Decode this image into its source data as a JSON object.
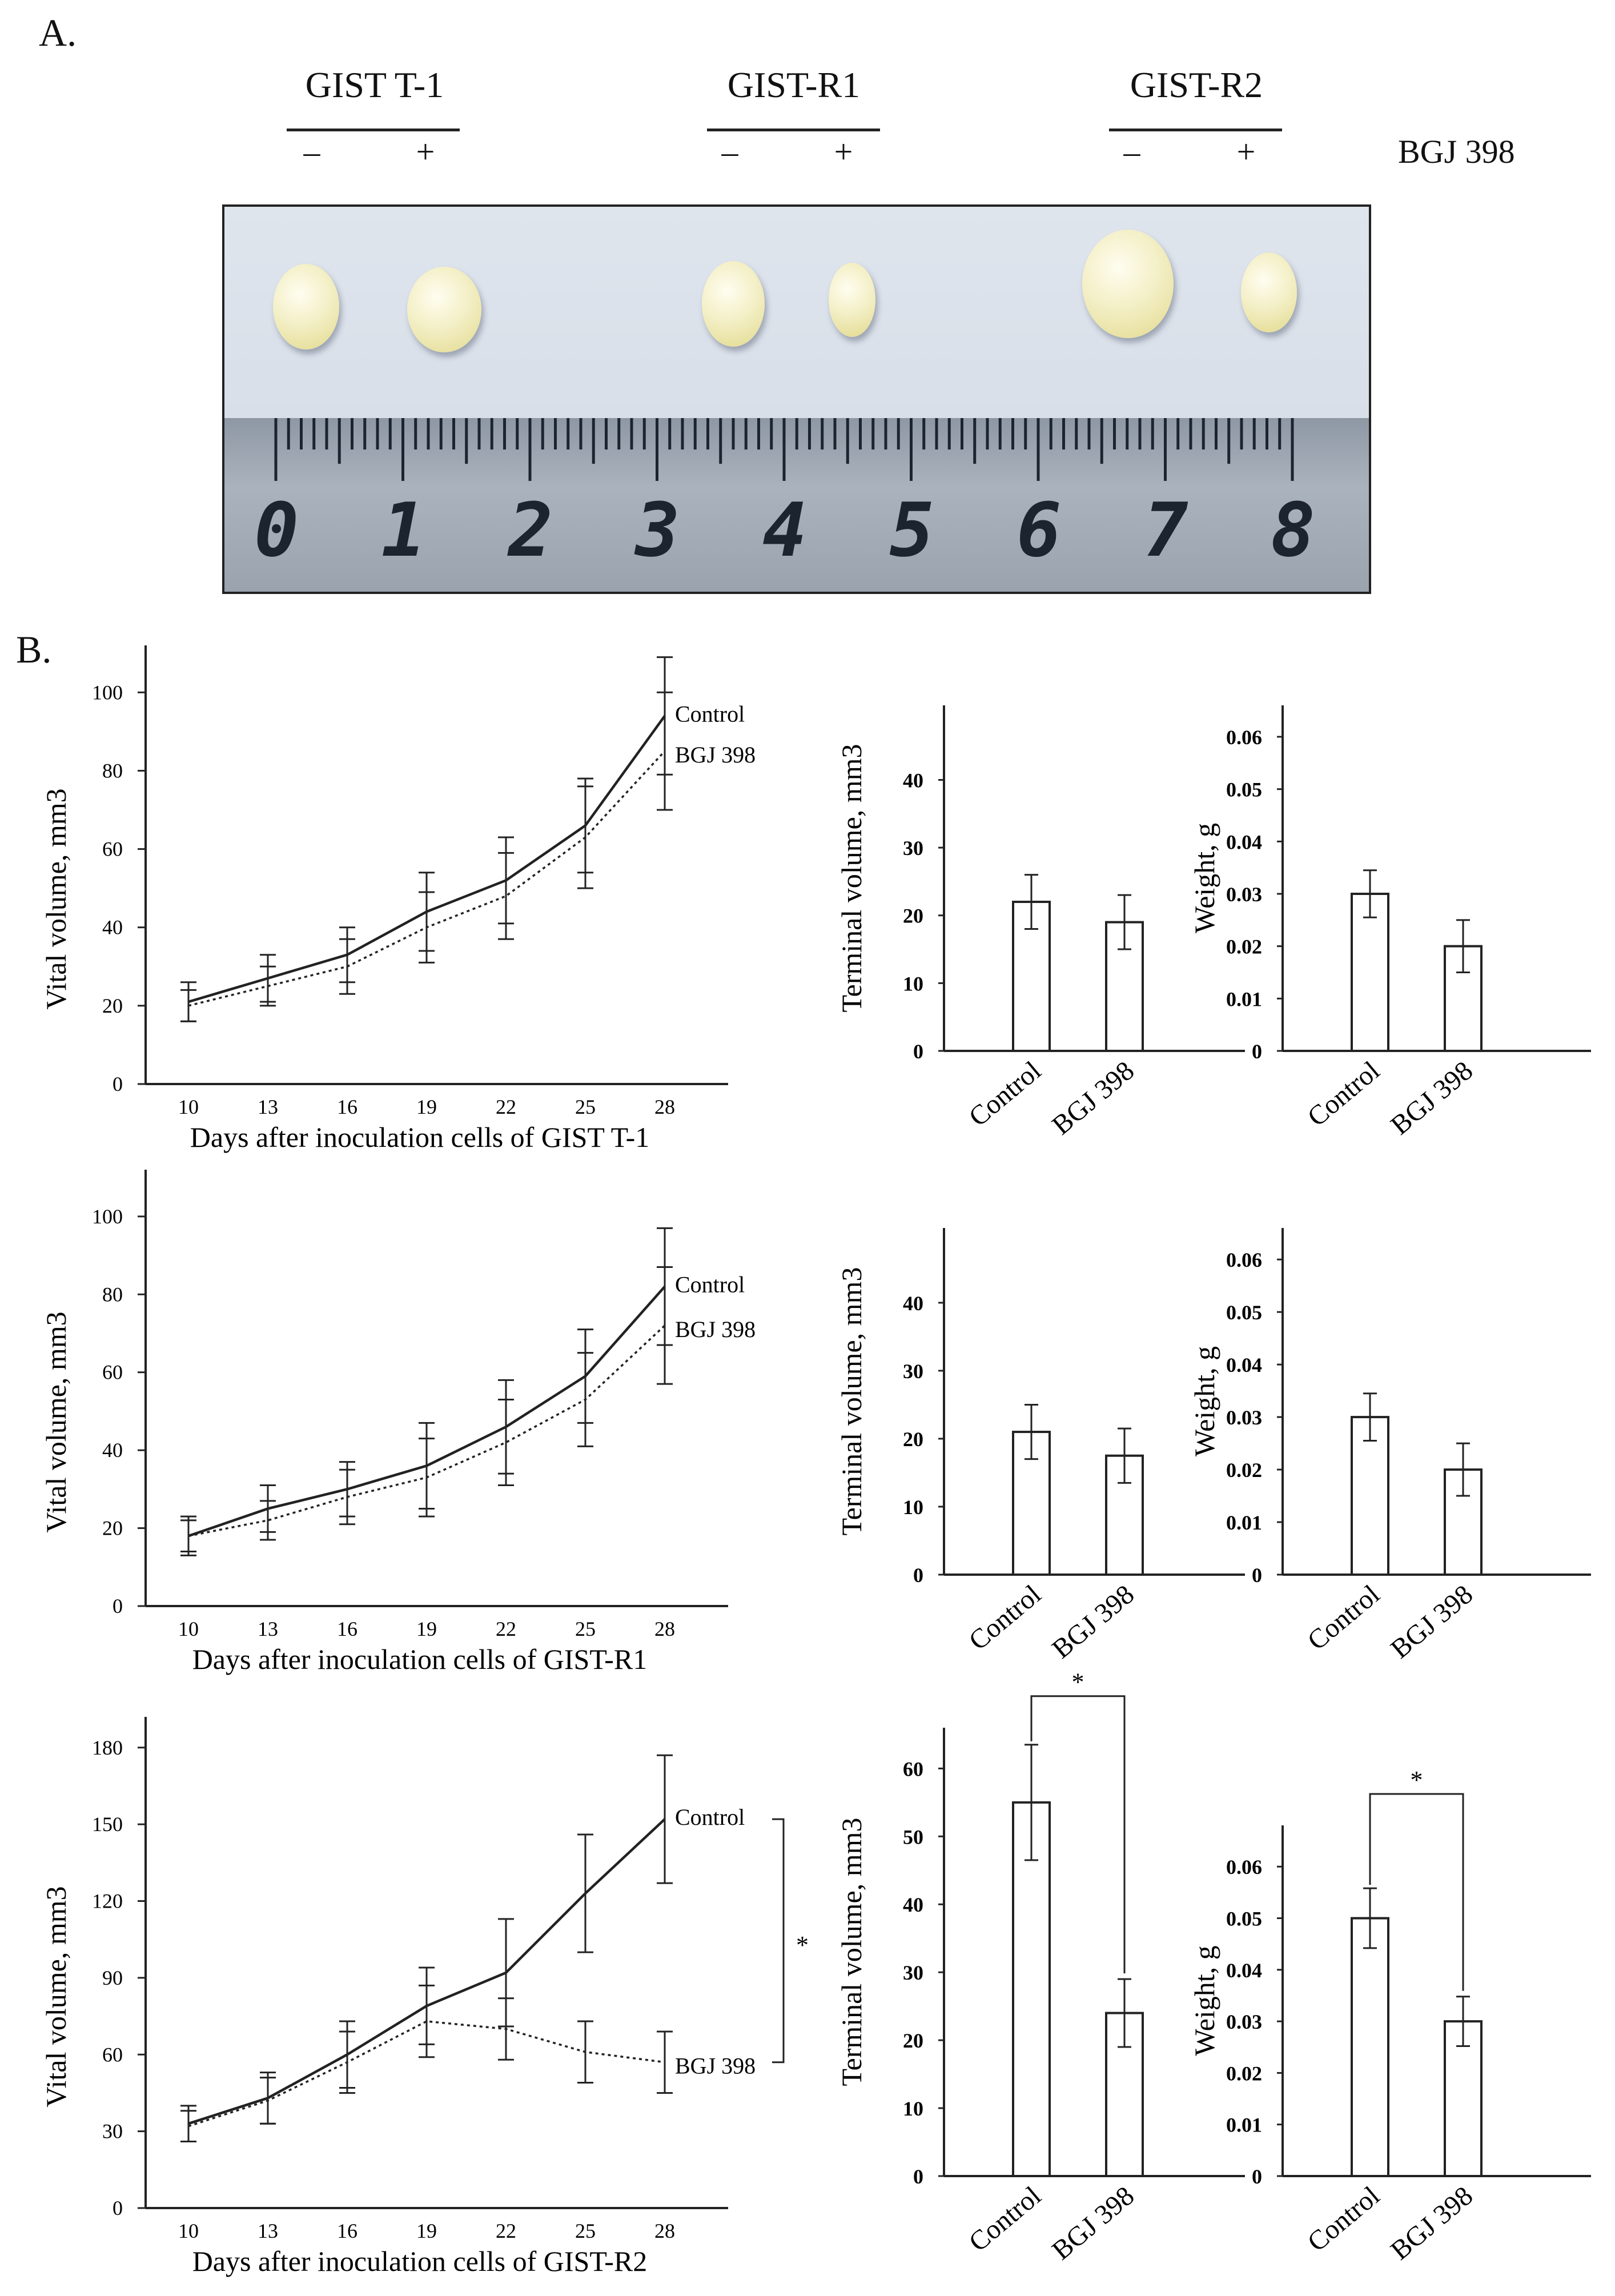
{
  "panel_a": {
    "label": "A.",
    "groups": [
      {
        "name": "GIST T-1",
        "minus": "–",
        "plus": "+"
      },
      {
        "name": "GIST-R1",
        "minus": "–",
        "plus": "+"
      },
      {
        "name": "GIST-R2",
        "minus": "–",
        "plus": "+"
      }
    ],
    "treatment_label": "BGJ 398",
    "ruler_digits": [
      "0",
      "1",
      "2",
      "3",
      "4",
      "5",
      "6",
      "7",
      "8"
    ]
  },
  "panel_b": {
    "label": "B."
  },
  "colors": {
    "line": "#222222",
    "bar_fill": "#ffffff",
    "axis": "#222222"
  },
  "chart_data": [
    {
      "id": "growth-t1",
      "type": "line",
      "xlabel": "Days after inoculation cells of GIST T-1",
      "ylabel": "Vital volume, mm3",
      "x": [
        10,
        13,
        16,
        19,
        22,
        25,
        28
      ],
      "xticks": [
        "10",
        "13",
        "16",
        "19",
        "22",
        "25",
        "28"
      ],
      "yticks": [
        0,
        20,
        40,
        60,
        80,
        100
      ],
      "ylim": [
        0,
        112
      ],
      "series": [
        {
          "name": "Control",
          "style": "solid",
          "values": [
            21,
            27,
            33,
            44,
            52,
            66,
            94
          ],
          "err": [
            5,
            6,
            7,
            10,
            11,
            12,
            15
          ]
        },
        {
          "name": "BGJ 398",
          "style": "dotted",
          "values": [
            20,
            25,
            30,
            40,
            48,
            63,
            85
          ],
          "err": [
            4,
            5,
            7,
            9,
            11,
            13,
            15
          ]
        }
      ]
    },
    {
      "id": "terminal-t1",
      "type": "bar",
      "ylabel": "Terminal volume, mm3",
      "categories": [
        "Control",
        "BGJ 398"
      ],
      "values": [
        22,
        19
      ],
      "err": [
        4,
        4
      ],
      "yticks": [
        0,
        10,
        20,
        30,
        40
      ],
      "ylim": [
        0,
        51
      ]
    },
    {
      "id": "weight-t1",
      "type": "bar",
      "ylabel": "Weight, g",
      "categories": [
        "Control",
        "BGJ 398"
      ],
      "values": [
        0.03,
        0.02
      ],
      "err": [
        0.0045,
        0.005
      ],
      "yticks": [
        "0",
        "0.01",
        "0.02",
        "0.03",
        "0.04",
        "0.05",
        "0.06"
      ],
      "ylim": [
        0,
        0.066
      ]
    },
    {
      "id": "growth-r1",
      "type": "line",
      "xlabel": "Days after inoculation cells of GIST-R1",
      "ylabel": "Vital volume, mm3",
      "x": [
        10,
        13,
        16,
        19,
        22,
        25,
        28
      ],
      "xticks": [
        "10",
        "13",
        "16",
        "19",
        "22",
        "25",
        "28"
      ],
      "yticks": [
        0,
        20,
        40,
        60,
        80,
        100
      ],
      "ylim": [
        0,
        112
      ],
      "series": [
        {
          "name": "Control",
          "style": "solid",
          "values": [
            18,
            25,
            30,
            36,
            46,
            59,
            82
          ],
          "err": [
            5,
            6,
            7,
            11,
            12,
            12,
            15
          ]
        },
        {
          "name": "BGJ 398",
          "style": "dotted",
          "values": [
            18,
            22,
            28,
            33,
            42,
            53,
            72
          ],
          "err": [
            4,
            5,
            7,
            10,
            11,
            12,
            15
          ]
        }
      ]
    },
    {
      "id": "terminal-r1",
      "type": "bar",
      "ylabel": "Terminal volume, mm3",
      "categories": [
        "Control",
        "BGJ 398"
      ],
      "values": [
        21,
        17.5
      ],
      "err": [
        4,
        4
      ],
      "yticks": [
        0,
        10,
        20,
        30,
        40
      ],
      "ylim": [
        0,
        51
      ]
    },
    {
      "id": "weight-r1",
      "type": "bar",
      "ylabel": "Weight, g",
      "categories": [
        "Control",
        "BGJ 398"
      ],
      "values": [
        0.03,
        0.02
      ],
      "err": [
        0.0045,
        0.005
      ],
      "yticks": [
        "0",
        "0.01",
        "0.02",
        "0.03",
        "0.04",
        "0.05",
        "0.06"
      ],
      "ylim": [
        0,
        0.066
      ]
    },
    {
      "id": "growth-r2",
      "type": "line",
      "xlabel": "Days after inoculation cells of GIST-R2",
      "ylabel": "Vital volume, mm3",
      "x": [
        10,
        13,
        16,
        19,
        22,
        25,
        28
      ],
      "xticks": [
        "10",
        "13",
        "16",
        "19",
        "22",
        "25",
        "28"
      ],
      "yticks": [
        0,
        30,
        60,
        90,
        120,
        150,
        180
      ],
      "ylim": [
        0,
        192
      ],
      "series": [
        {
          "name": "Control",
          "style": "solid",
          "values": [
            33,
            43,
            60,
            79,
            92,
            123,
            152
          ],
          "err": [
            7,
            10,
            13,
            15,
            21,
            23,
            25
          ]
        },
        {
          "name": "BGJ 398",
          "style": "dotted",
          "values": [
            32,
            42,
            57,
            73,
            70,
            61,
            57
          ],
          "err": [
            6,
            9,
            12,
            14,
            12,
            12,
            12
          ]
        }
      ],
      "significance": "*"
    },
    {
      "id": "terminal-r2",
      "type": "bar",
      "ylabel": "Terminal volume, mm3",
      "categories": [
        "Control",
        "BGJ 398"
      ],
      "values": [
        55,
        24
      ],
      "err": [
        8.5,
        5
      ],
      "yticks": [
        0,
        10,
        20,
        30,
        40,
        50,
        60
      ],
      "ylim": [
        0,
        66
      ],
      "significance": "*"
    },
    {
      "id": "weight-r2",
      "type": "bar",
      "ylabel": "Weight, g",
      "categories": [
        "Control",
        "BGJ 398"
      ],
      "values": [
        0.05,
        0.03
      ],
      "err": [
        0.0058,
        0.0048
      ],
      "yticks": [
        "0",
        "0.01",
        "0.02",
        "0.03",
        "0.04",
        "0.05",
        "0.06"
      ],
      "ylim": [
        0,
        0.068
      ],
      "significance": "*"
    }
  ]
}
